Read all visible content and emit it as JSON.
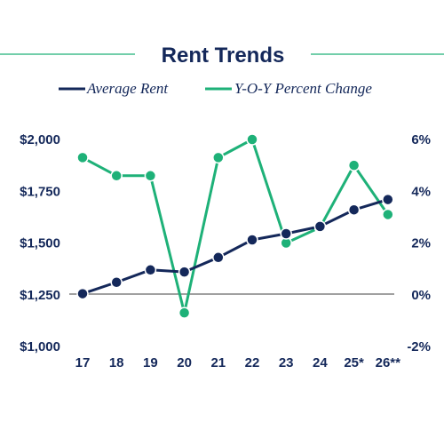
{
  "chart_data": {
    "type": "line",
    "title": "Rent Trends",
    "categories": [
      "17",
      "18",
      "19",
      "20",
      "21",
      "22",
      "23",
      "24",
      "25*",
      "26**"
    ],
    "series": [
      {
        "name": "Average Rent",
        "axis": "left",
        "color": "#14285a",
        "values": [
          1255,
          1310,
          1370,
          1360,
          1430,
          1515,
          1545,
          1580,
          1660,
          1710
        ]
      },
      {
        "name": "Y-O-Y Percent Change",
        "axis": "right",
        "color": "#1eb178",
        "values": [
          5.3,
          4.6,
          4.6,
          -0.7,
          5.3,
          6.0,
          2.0,
          2.6,
          5.0,
          3.1
        ]
      }
    ],
    "y_left": {
      "range": [
        1000,
        2000
      ],
      "ticks": [
        1000,
        1250,
        1500,
        1750,
        2000
      ],
      "tick_labels": [
        "$1,000",
        "$1,250",
        "$1,500",
        "$1,750",
        "$2,000"
      ]
    },
    "y_right": {
      "range": [
        -2,
        6
      ],
      "ticks": [
        -2,
        0,
        2,
        4,
        6
      ],
      "tick_labels": [
        "-2%",
        "0%",
        "2%",
        "4%",
        "6%"
      ]
    },
    "legend_position": "top-center",
    "grid": false,
    "baseline_at": 0
  }
}
